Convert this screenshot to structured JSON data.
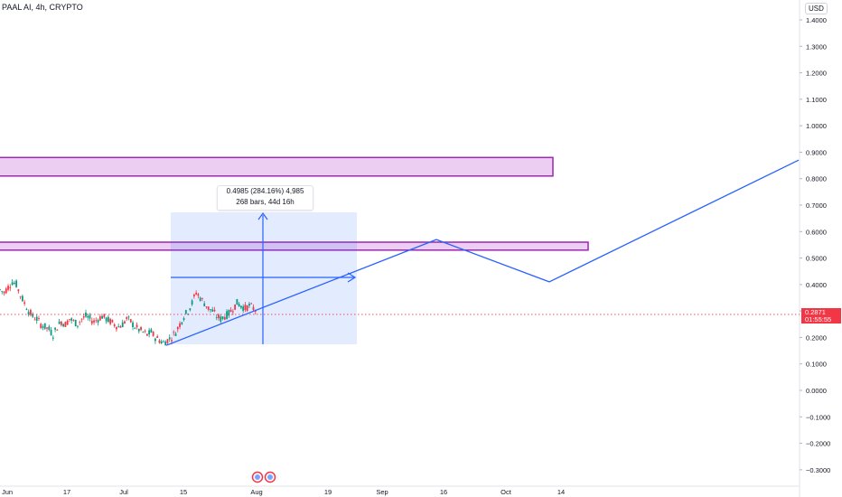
{
  "header": {
    "title": "PAAL AI, 4h, CRYPTO",
    "currency": "USD"
  },
  "measure": {
    "line1": "0.4985 (284.16%) 4,985",
    "line2": "268 bars, 44d 16h"
  },
  "last_price": {
    "value": "0.2871",
    "countdown": "01:55:55"
  },
  "colors": {
    "rect_fill": "#e7c6ef",
    "rect_border": "#9c27b0",
    "measure_fill": "#2962ff",
    "trend_line": "#2962ff",
    "candle_up": "#089981",
    "candle_down": "#f23645",
    "price_line": "#f23645"
  },
  "chart_data": {
    "type": "candlestick",
    "y_ticks": [
      "1.4000",
      "1.3000",
      "1.2000",
      "1.1000",
      "1.0000",
      "0.9000",
      "0.8000",
      "0.7000",
      "0.6000",
      "0.5000",
      "0.4000",
      "0.3000",
      "0.2000",
      "0.1000",
      "0.0000",
      "−0.1000",
      "−0.2000",
      "−0.3000"
    ],
    "ylim": [
      -0.33,
      1.45
    ],
    "x_ticks": [
      "Jun",
      "17",
      "Jul",
      "15",
      "Aug",
      "19",
      "Sep",
      "16",
      "Oct",
      "14"
    ],
    "price_path": [
      0.38,
      0.37,
      0.39,
      0.41,
      0.4,
      0.36,
      0.33,
      0.3,
      0.28,
      0.27,
      0.25,
      0.24,
      0.23,
      0.21,
      0.24,
      0.26,
      0.25,
      0.27,
      0.26,
      0.25,
      0.27,
      0.28,
      0.27,
      0.26,
      0.27,
      0.28,
      0.27,
      0.26,
      0.25,
      0.24,
      0.25,
      0.27,
      0.26,
      0.24,
      0.23,
      0.22,
      0.21,
      0.22,
      0.2,
      0.19,
      0.18,
      0.19,
      0.2,
      0.22,
      0.25,
      0.28,
      0.3,
      0.33,
      0.37,
      0.35,
      0.33,
      0.31,
      0.3,
      0.28,
      0.27,
      0.28,
      0.29,
      0.31,
      0.33,
      0.32,
      0.31,
      0.32,
      0.31,
      0.3
    ],
    "zones": [
      {
        "from": 0.81,
        "to": 0.88
      },
      {
        "from": 0.53,
        "to": 0.56
      }
    ],
    "projection": [
      0.17,
      0.57,
      0.41,
      0.87
    ]
  }
}
